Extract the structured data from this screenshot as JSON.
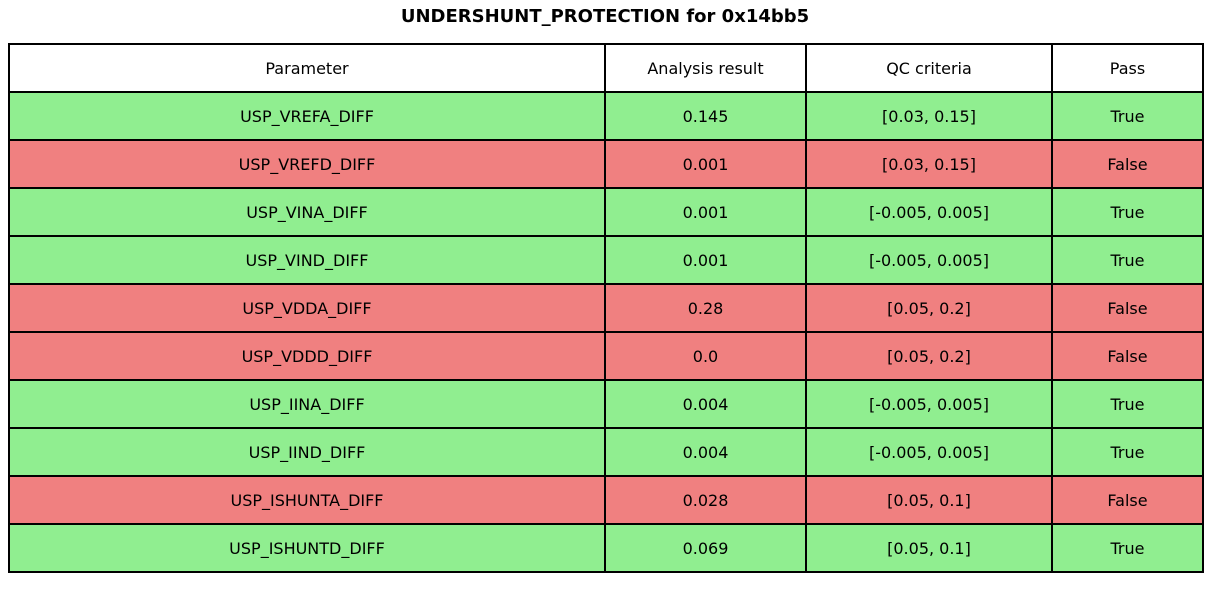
{
  "title": "UNDERSHUNT_PROTECTION for 0x14bb5",
  "colors": {
    "pass_row": "#90EE90",
    "fail_row": "#F08080",
    "border": "#000000",
    "header_bg": "#FFFFFF",
    "text": "#000000"
  },
  "chart_data": {
    "type": "table",
    "title": "UNDERSHUNT_PROTECTION for 0x14bb5",
    "columns": [
      "Parameter",
      "Analysis result",
      "QC criteria",
      "Pass"
    ],
    "rows": [
      {
        "parameter": "USP_VREFA_DIFF",
        "analysis_result": "0.145",
        "qc_criteria": "[0.03, 0.15]",
        "pass": "True"
      },
      {
        "parameter": "USP_VREFD_DIFF",
        "analysis_result": "0.001",
        "qc_criteria": "[0.03, 0.15]",
        "pass": "False"
      },
      {
        "parameter": "USP_VINA_DIFF",
        "analysis_result": "0.001",
        "qc_criteria": "[-0.005, 0.005]",
        "pass": "True"
      },
      {
        "parameter": "USP_VIND_DIFF",
        "analysis_result": "0.001",
        "qc_criteria": "[-0.005, 0.005]",
        "pass": "True"
      },
      {
        "parameter": "USP_VDDA_DIFF",
        "analysis_result": "0.28",
        "qc_criteria": "[0.05, 0.2]",
        "pass": "False"
      },
      {
        "parameter": "USP_VDDD_DIFF",
        "analysis_result": "0.0",
        "qc_criteria": "[0.05, 0.2]",
        "pass": "False"
      },
      {
        "parameter": "USP_IINA_DIFF",
        "analysis_result": "0.004",
        "qc_criteria": "[-0.005, 0.005]",
        "pass": "True"
      },
      {
        "parameter": "USP_IIND_DIFF",
        "analysis_result": "0.004",
        "qc_criteria": "[-0.005, 0.005]",
        "pass": "True"
      },
      {
        "parameter": "USP_ISHUNTA_DIFF",
        "analysis_result": "0.028",
        "qc_criteria": "[0.05, 0.1]",
        "pass": "False"
      },
      {
        "parameter": "USP_ISHUNTD_DIFF",
        "analysis_result": "0.069",
        "qc_criteria": "[0.05, 0.1]",
        "pass": "True"
      }
    ]
  }
}
